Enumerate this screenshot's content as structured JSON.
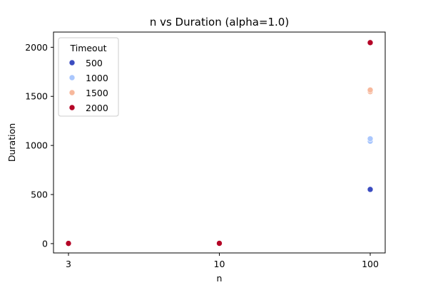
{
  "chart_data": {
    "type": "scatter",
    "title": "n vs Duration (alpha=1.0)",
    "xlabel": "n",
    "ylabel": "Duration",
    "x_categories": [
      "3",
      "10",
      "100"
    ],
    "ylim": [
      -95,
      2155
    ],
    "yticks": [
      0,
      500,
      1000,
      1500,
      2000
    ],
    "grid": false,
    "legend": {
      "title": "Timeout",
      "placement": "upper-left",
      "entries": [
        {
          "label": "500",
          "color": "#3b4cc0"
        },
        {
          "label": "1000",
          "color": "#aac7fd"
        },
        {
          "label": "1500",
          "color": "#f7b89c"
        },
        {
          "label": "2000",
          "color": "#b40426"
        }
      ]
    },
    "series": [
      {
        "name": "500",
        "color": "#3b4cc0",
        "points": [
          {
            "x": "3",
            "y": 2
          },
          {
            "x": "10",
            "y": 3
          },
          {
            "x": "100",
            "y": 552
          }
        ]
      },
      {
        "name": "1000",
        "color": "#aac7fd",
        "points": [
          {
            "x": "3",
            "y": 2
          },
          {
            "x": "10",
            "y": 3
          },
          {
            "x": "100",
            "y": 1043
          },
          {
            "x": "100",
            "y": 1068
          }
        ]
      },
      {
        "name": "1500",
        "color": "#f7b89c",
        "points": [
          {
            "x": "3",
            "y": 2
          },
          {
            "x": "10",
            "y": 3
          },
          {
            "x": "100",
            "y": 1548
          },
          {
            "x": "100",
            "y": 1565
          }
        ]
      },
      {
        "name": "2000",
        "color": "#b40426",
        "points": [
          {
            "x": "3",
            "y": 2
          },
          {
            "x": "10",
            "y": 3
          },
          {
            "x": "100",
            "y": 2050
          },
          {
            "x": "100",
            "y": 2047
          }
        ]
      }
    ]
  }
}
